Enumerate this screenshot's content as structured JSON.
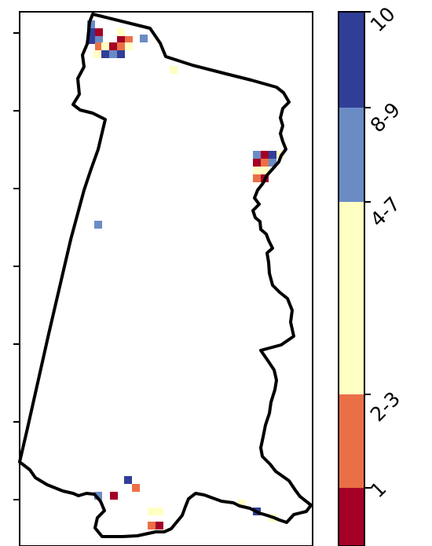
{
  "colors": {
    "class_1": "#a50026",
    "class_2_3": "#eb6f46",
    "class_4_7": "#ffffc4",
    "class_8_9": "#6b8bc5",
    "class_10": "#303e98",
    "boundary": "#000000",
    "frame": "#000000"
  },
  "map": {
    "y_tick_count": 7,
    "cell_classes": [
      "1",
      "2-3",
      "4-7",
      "8-9",
      "10"
    ]
  },
  "colorbar": {
    "classes": [
      {
        "label": "1",
        "color": "#a50026"
      },
      {
        "label": "2-3",
        "color": "#eb6f46"
      },
      {
        "label": "4-7",
        "color": "#ffffc4"
      },
      {
        "label": "8-9",
        "color": "#6b8bc5"
      },
      {
        "label": "10",
        "color": "#303e98"
      }
    ],
    "tick_labels": [
      "1",
      "2-3",
      "4-7",
      "8-9",
      "10"
    ],
    "tick_rotation": "45 degrees"
  }
}
